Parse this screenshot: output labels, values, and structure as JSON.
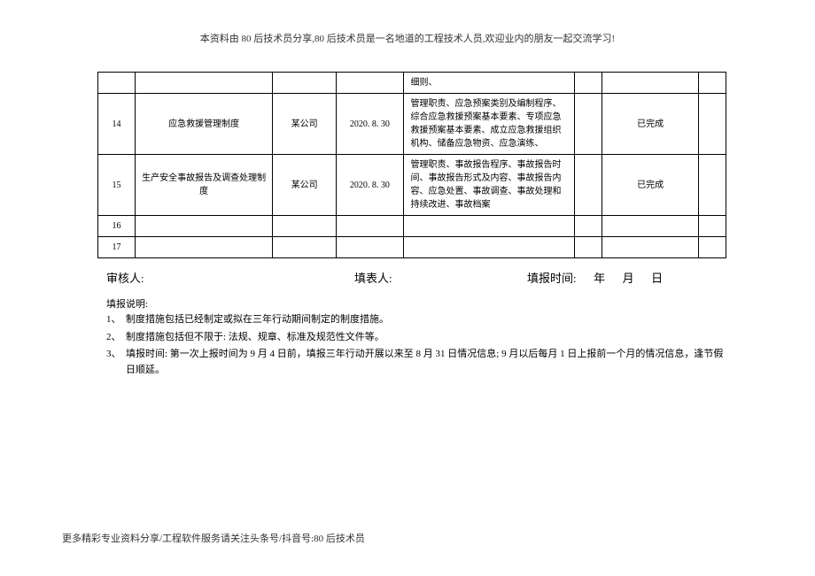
{
  "header_text": "本资料由 80 后技术员分享,80 后技术员是一名地道的工程技术人员,欢迎业内的朋友一起交流学习!",
  "top_row_cell5": "细则、",
  "rows": [
    {
      "idx": "14",
      "name": "应急救援管理制度",
      "company": "某公司",
      "date": "2020. 8. 30",
      "desc": "管理职责、应急预案类别及编制程序、综合应急救援预案基本要素、专项应急救援预案基本要素、成立应急救援组织机构、储备应急物资、应急演练、",
      "status": "已完成"
    },
    {
      "idx": "15",
      "name": "生产安全事故报告及调查处理制度",
      "company": "某公司",
      "date": "2020. 8. 30",
      "desc": "管理职责、事故报告程序、事故报告时间、事故报告形式及内容、事故报告内容、应急处置、事故调查、事故处理和持续改进、事故档案",
      "status": "已完成"
    }
  ],
  "empty_rows": [
    "16",
    "17"
  ],
  "signature": {
    "auditor": "审核人:",
    "reporter": "填表人:",
    "report_time": "填报时间:",
    "year": "年",
    "month": "月",
    "day": "日"
  },
  "notes_title": "填报说明:",
  "notes": [
    {
      "num": "1、",
      "text": "制度措施包括已经制定或拟在三年行动期间制定的制度措施。"
    },
    {
      "num": "2、",
      "text": "制度措施包括但不限于: 法规、规章、标准及规范性文件等。"
    },
    {
      "num": "3、",
      "text": "填报时间: 第一次上报时间为 9 月 4 日前，填报三年行动开展以来至 8 月 31 日情况信息; 9 月以后每月 1 日上报前一个月的情况信息，逢节假日顺延。"
    }
  ],
  "footer_text": "更多精彩专业资料分享/工程软件服务请关注头条号/抖音号:80 后技术员"
}
